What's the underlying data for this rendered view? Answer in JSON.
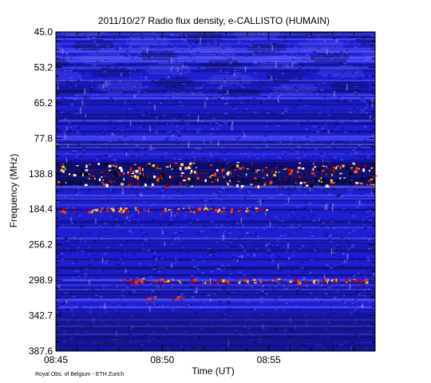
{
  "chart_data": {
    "type": "heatmap",
    "title": "2011/10/27  Radio flux density, e-CALLISTO (HUMAIN)",
    "xlabel": "Time (UT)",
    "ylabel": "Frequency (MHz)",
    "x_ticks": [
      "08:45",
      "08:50",
      "08:55"
    ],
    "y_ticks": [
      "45.0",
      "53.2",
      "65.2",
      "77.8",
      "138.8",
      "184.4",
      "256.2",
      "298.9",
      "342.7",
      "387.6"
    ],
    "x_range": [
      "08:45",
      "09:00"
    ],
    "y_range": [
      45.0,
      387.6
    ],
    "colormap": [
      "#0a0a50",
      "#1e1ed2",
      "#6464ff",
      "#e0c8f0",
      "#ffffff",
      "#ffc832",
      "#ff3c0a",
      "#b40000",
      "#000000"
    ],
    "emission_bands": [
      {
        "freq_mhz": 138.8,
        "intensity": "strong",
        "extent": [
          "08:45",
          "09:00"
        ]
      },
      {
        "freq_mhz": 184.4,
        "intensity": "moderate",
        "extent": [
          "08:45",
          "08:55"
        ]
      },
      {
        "freq_mhz": 298.9,
        "intensity": "moderate",
        "extent": [
          "08:48",
          "09:00"
        ]
      },
      {
        "freq_mhz": 320.0,
        "intensity": "weak",
        "extent": [
          "08:49",
          "08:51"
        ]
      }
    ]
  },
  "credit": "Royal Obs. of Belgium - ETH Zurich"
}
